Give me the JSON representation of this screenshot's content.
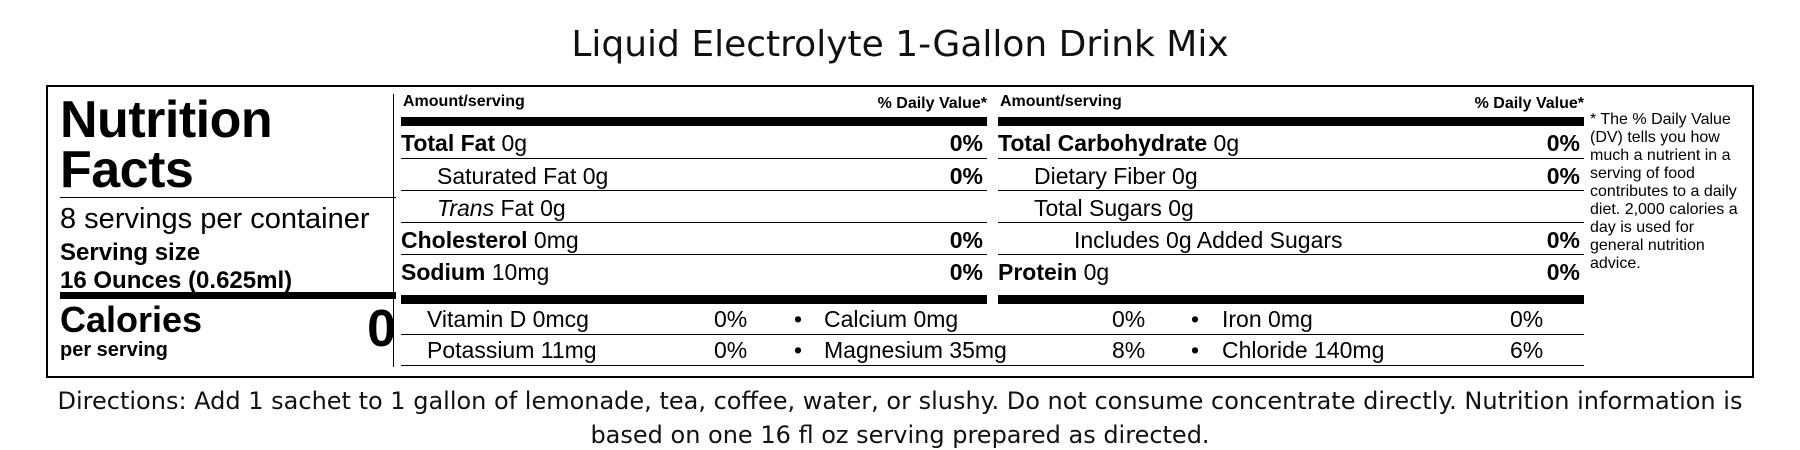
{
  "title": "Liquid Electrolyte 1-Gallon Drink Mix",
  "label": {
    "heading_line1": "Nutrition",
    "heading_line2": "Facts",
    "servings": "8 servings per container",
    "serving_size_label": "Serving size",
    "serving_size_value": "16 Ounces (0.625ml)",
    "calories_label": "Calories",
    "calories_sub": "per serving",
    "calories_value": "0",
    "amount_header": "Amount/serving",
    "dv_header": "% Daily Value*",
    "col1": [
      {
        "name": "Total Fat",
        "amount": "0g",
        "pct": "0%"
      },
      {
        "name": "Saturated Fat",
        "amount": "0g",
        "pct": "0%"
      },
      {
        "name": "Trans",
        "suffix": "Fat 0g",
        "pct": ""
      },
      {
        "name": "Cholesterol",
        "amount": "0mg",
        "pct": "0%"
      },
      {
        "name": "Sodium",
        "amount": "10mg",
        "pct": "0%"
      }
    ],
    "col2": [
      {
        "name": "Total Carbohydrate",
        "amount": "0g",
        "pct": "0%"
      },
      {
        "name": "Dietary Fiber",
        "amount": "0g",
        "pct": "0%"
      },
      {
        "name": "Total Sugars",
        "amount": "0g",
        "pct": ""
      },
      {
        "name": "Includes 0g Added Sugars",
        "pct": "0%"
      },
      {
        "name": "Protein",
        "amount": "0g",
        "pct": "0%"
      }
    ],
    "vitamins_row1": [
      {
        "name": "Vitamin D 0mcg",
        "pct": "0%"
      },
      {
        "name": "Calcium 0mg",
        "pct": "0%"
      },
      {
        "name": "Iron 0mg",
        "pct": "0%"
      }
    ],
    "vitamins_row2": [
      {
        "name": "Potassium 11mg",
        "pct": "0%"
      },
      {
        "name": "Magnesium 35mg",
        "pct": "8%"
      },
      {
        "name": "Chloride 140mg",
        "pct": "6%"
      }
    ],
    "bullet": "•",
    "footnote": "* The % Daily Value (DV) tells you how much a nutrient in a serving of food contributes to a daily diet. 2,000 calories a day is used for general nutrition advice."
  },
  "directions": "Directions: Add 1 sachet to 1 gallon of lemonade, tea, coffee, water, or slushy. Do not consume concentrate directly. Nutrition information is based on one 16 fl oz serving prepared as directed."
}
